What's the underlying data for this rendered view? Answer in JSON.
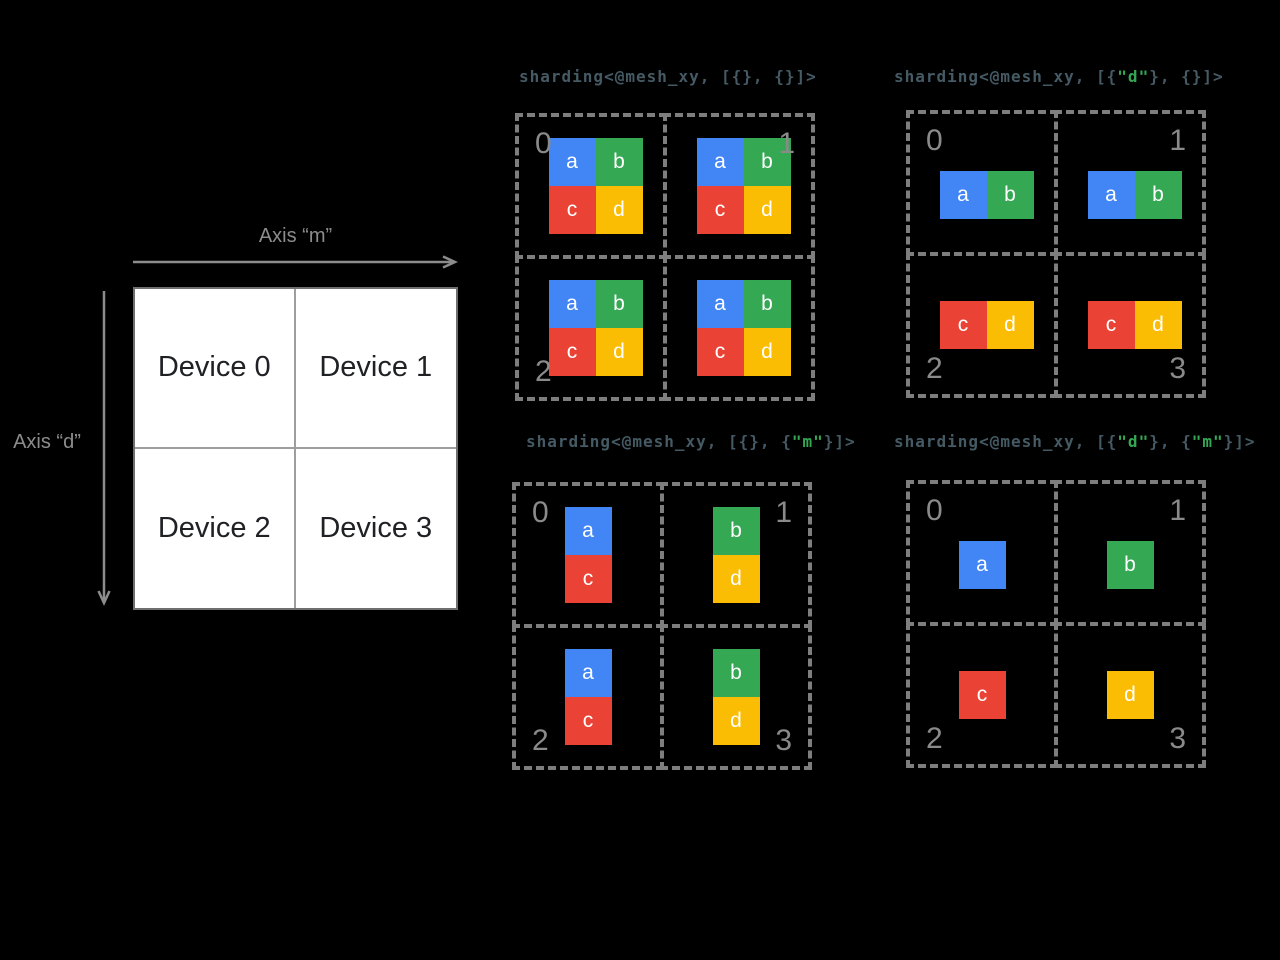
{
  "colors": {
    "background": "#000000",
    "tile_a_blue": "#4285F4",
    "tile_b_green": "#34A853",
    "tile_c_red": "#EA4335",
    "tile_d_yellow": "#FBBC04",
    "tile_letter": "#FFFFFF",
    "dashed_device_border": "#7E7E7E",
    "device_number": "#8A8A8A",
    "code_text": "#455A64",
    "code_string_green": "#34A853",
    "axis_label": "#8C8C8C",
    "mesh_border": "#6F6F6F",
    "mesh_divider": "#9E9E9E",
    "mesh_background": "#FFFFFF",
    "mesh_text": "#202124"
  },
  "mesh": {
    "axis_m_label": "Axis “m”",
    "axis_d_label": "Axis “d”",
    "devices": [
      "Device 0",
      "Device 1",
      "Device 2",
      "Device 3"
    ]
  },
  "diagrams": [
    {
      "title": {
        "s1": "sharding<@mesh_xy, [{}, {}]>",
        "g1": "",
        "s2": "",
        "g2": "",
        "s3": ""
      },
      "cells": [
        {
          "device": "0",
          "corner": "tl",
          "layout": "grid2x2",
          "tiles": [
            "a",
            "b",
            "c",
            "d"
          ]
        },
        {
          "device": "1",
          "corner": "tr",
          "layout": "grid2x2",
          "tiles": [
            "a",
            "b",
            "c",
            "d"
          ]
        },
        {
          "device": "2",
          "corner": "bl",
          "layout": "grid2x2",
          "tiles": [
            "a",
            "b",
            "c",
            "d"
          ]
        },
        {
          "device": "",
          "corner": "br",
          "layout": "grid2x2",
          "tiles": [
            "a",
            "b",
            "c",
            "d"
          ]
        }
      ]
    },
    {
      "title": {
        "s1": "sharding<@mesh_xy, [{",
        "g1": "\"d\"",
        "s2": "}, {}]>",
        "g2": "",
        "s3": ""
      },
      "cells": [
        {
          "device": "0",
          "corner": "tl",
          "layout": "hpair",
          "tiles": [
            "a",
            "b"
          ]
        },
        {
          "device": "1",
          "corner": "tr",
          "layout": "hpair",
          "tiles": [
            "a",
            "b"
          ]
        },
        {
          "device": "2",
          "corner": "bl",
          "layout": "hpair",
          "tiles": [
            "c",
            "d"
          ]
        },
        {
          "device": "3",
          "corner": "br",
          "layout": "hpair",
          "tiles": [
            "c",
            "d"
          ]
        }
      ]
    },
    {
      "title": {
        "s1": "sharding<@mesh_xy, [{}, {",
        "g1": "\"m\"",
        "s2": "}]>",
        "g2": "",
        "s3": ""
      },
      "cells": [
        {
          "device": "0",
          "corner": "tl",
          "layout": "vpair",
          "tiles": [
            "a",
            "c"
          ]
        },
        {
          "device": "1",
          "corner": "tr",
          "layout": "vpair",
          "tiles": [
            "b",
            "d"
          ]
        },
        {
          "device": "2",
          "corner": "bl",
          "layout": "vpair",
          "tiles": [
            "a",
            "c"
          ]
        },
        {
          "device": "3",
          "corner": "br",
          "layout": "vpair",
          "tiles": [
            "b",
            "d"
          ]
        }
      ]
    },
    {
      "title": {
        "s1": "sharding<@mesh_xy, [{",
        "g1": "\"d\"",
        "s2": "}, {",
        "g2": "\"m\"",
        "s3": "}]>"
      },
      "cells": [
        {
          "device": "0",
          "corner": "tl",
          "layout": "single",
          "tiles": [
            "a"
          ]
        },
        {
          "device": "1",
          "corner": "tr",
          "layout": "single",
          "tiles": [
            "b"
          ]
        },
        {
          "device": "2",
          "corner": "bl",
          "layout": "single",
          "tiles": [
            "c"
          ]
        },
        {
          "device": "3",
          "corner": "br",
          "layout": "single",
          "tiles": [
            "d"
          ]
        }
      ]
    }
  ]
}
